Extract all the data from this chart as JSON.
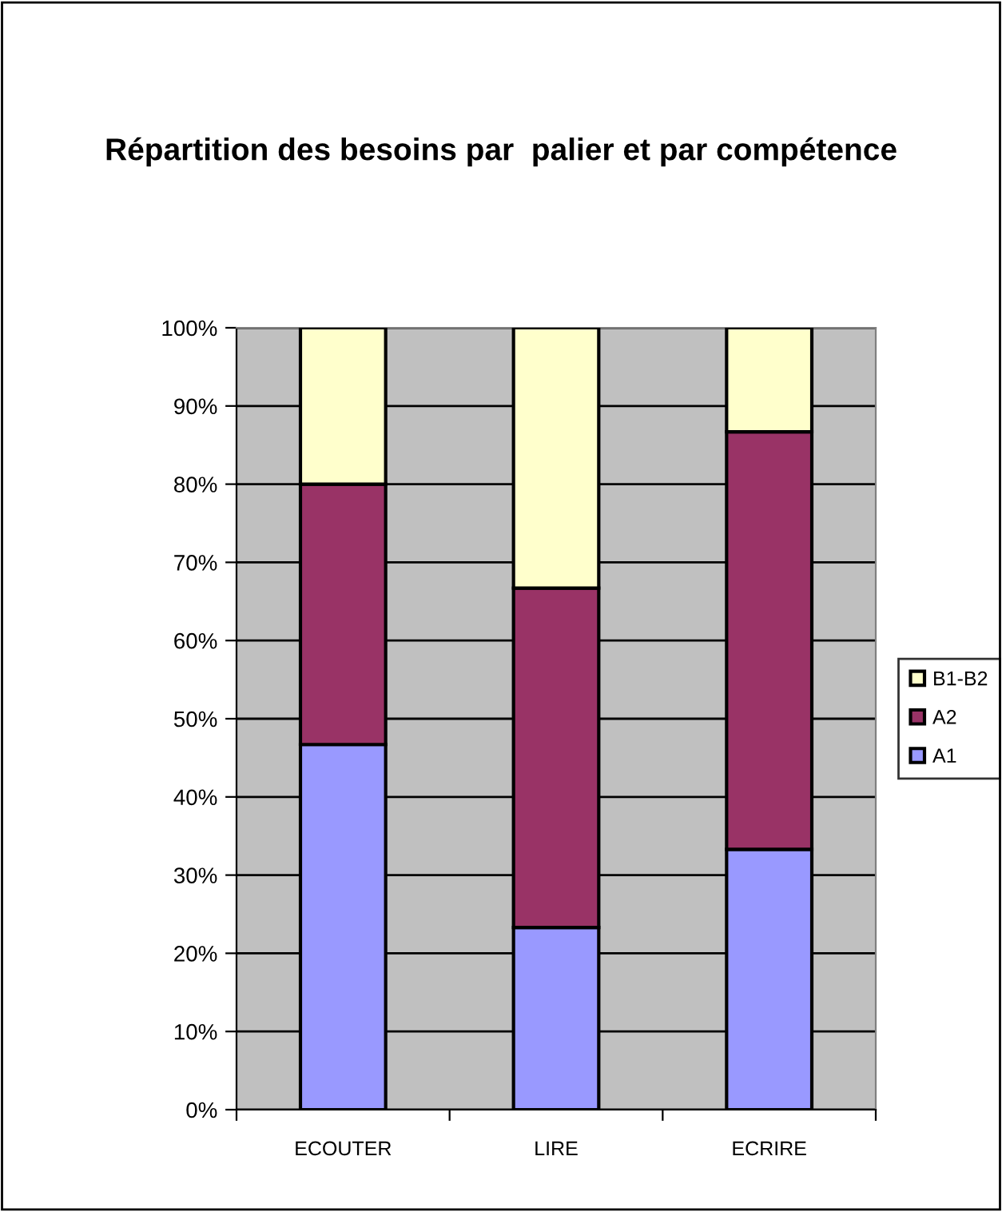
{
  "chart_data": {
    "type": "bar",
    "title": "Répartition des besoins par  palier et par compétence",
    "stacked": true,
    "categories": [
      "ECOUTER",
      "LIRE",
      "ECRIRE"
    ],
    "series": [
      {
        "name": "A1",
        "color": "#9999ff",
        "values": [
          46.7,
          23.3,
          33.3
        ]
      },
      {
        "name": "A2",
        "color": "#993366",
        "values": [
          33.3,
          43.4,
          53.4
        ]
      },
      {
        "name": "B1-B2",
        "color": "#ffffcc",
        "values": [
          20,
          33.3,
          13.3
        ]
      }
    ],
    "ylim": [
      0,
      100
    ],
    "yticks": [
      {
        "value": 0,
        "label": "0%"
      },
      {
        "value": 10,
        "label": "10%"
      },
      {
        "value": 20,
        "label": "20%"
      },
      {
        "value": 30,
        "label": "30%"
      },
      {
        "value": 40,
        "label": "40%"
      },
      {
        "value": 50,
        "label": "50%"
      },
      {
        "value": 60,
        "label": "60%"
      },
      {
        "value": 70,
        "label": "70%"
      },
      {
        "value": 80,
        "label": "80%"
      },
      {
        "value": 90,
        "label": "90%"
      },
      {
        "value": 100,
        "label": "100%"
      }
    ],
    "grid": "y",
    "legend": "right"
  }
}
